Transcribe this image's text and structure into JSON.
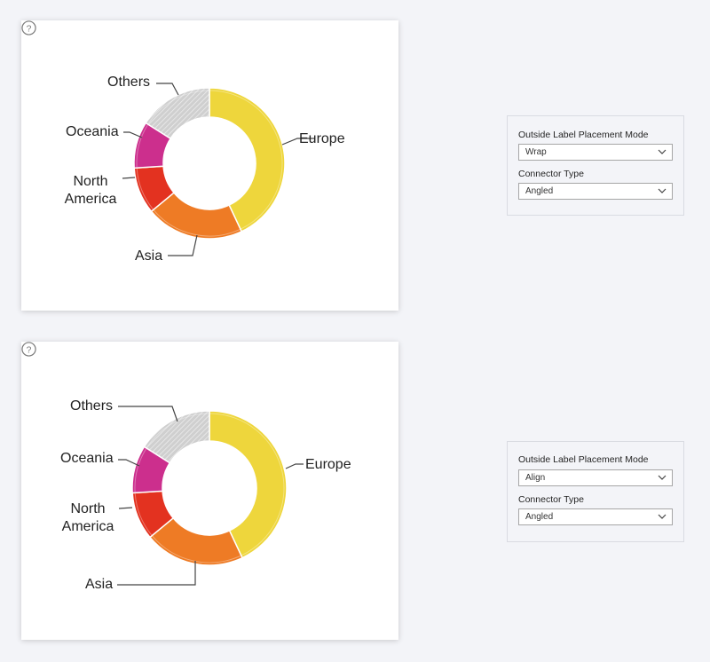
{
  "charts": [
    {
      "labels": {
        "europe": "Europe",
        "asia": "Asia",
        "north_america_1": "North",
        "north_america_2": "America",
        "oceania": "Oceania",
        "others": "Others"
      }
    },
    {
      "labels": {
        "europe": "Europe",
        "asia": "Asia",
        "north_america_1": "North",
        "north_america_2": "America",
        "oceania": "Oceania",
        "others": "Others"
      }
    }
  ],
  "settings": [
    {
      "placement_label": "Outside Label Placement Mode",
      "placement_value": "Wrap",
      "connector_label": "Connector Type",
      "connector_value": "Angled"
    },
    {
      "placement_label": "Outside Label Placement Mode",
      "placement_value": "Align",
      "connector_label": "Connector Type",
      "connector_value": "Angled"
    }
  ],
  "chart_data": [
    {
      "type": "pie",
      "categories": [
        "Europe",
        "Asia",
        "North America",
        "Oceania",
        "Others"
      ],
      "values": [
        43,
        21,
        10,
        10,
        16
      ],
      "colors": [
        "#eed63c",
        "#ee7b25",
        "#e33220",
        "#cc2f8d",
        "#cccccc"
      ],
      "donut": true,
      "legend": "outside labels, wrap"
    },
    {
      "type": "pie",
      "categories": [
        "Europe",
        "Asia",
        "North America",
        "Oceania",
        "Others"
      ],
      "values": [
        43,
        21,
        10,
        10,
        16
      ],
      "colors": [
        "#eed63c",
        "#ee7b25",
        "#e33220",
        "#cc2f8d",
        "#cccccc"
      ],
      "donut": true,
      "legend": "outside labels, align"
    }
  ]
}
